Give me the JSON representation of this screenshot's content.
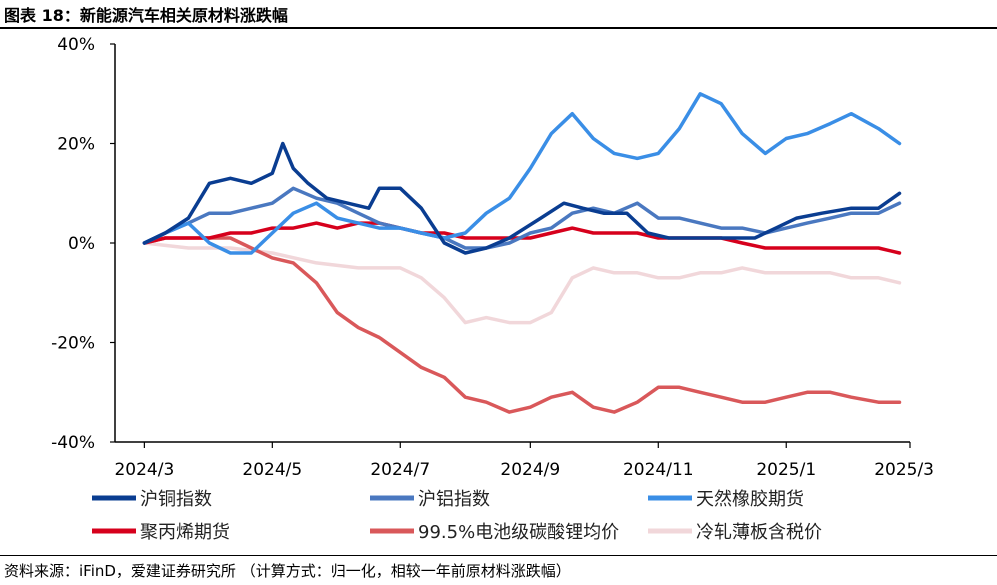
{
  "header": {
    "title": "图表 18：新能源汽车相关原材料涨跌幅"
  },
  "footer": {
    "source": "资料来源：iFinD，爱建证券研究所 （计算方式：归一化，相较一年前原材料涨跌幅）"
  },
  "chart_data": {
    "type": "line",
    "title": "图表 18：新能源汽车相关原材料涨跌幅",
    "xlabel": "",
    "ylabel": "",
    "x_tick_labels": [
      "2024/3",
      "2024/5",
      "2024/7",
      "2024/9",
      "2024/11",
      "2025/1",
      "2025/3"
    ],
    "y_tick_labels": [
      "40%",
      "20%",
      "0%",
      "-20%",
      "-40%"
    ],
    "y_ticks": [
      40,
      20,
      0,
      -20,
      -40
    ],
    "xlim": [
      "2024-03-01",
      "2025-03-15"
    ],
    "ylim": [
      -40,
      40
    ],
    "grid": false,
    "legend_placement": "bottom",
    "series": [
      {
        "name": "沪铜指数",
        "color": "#0a3d91",
        "points": [
          [
            "2024-03-15",
            0
          ],
          [
            "2024-03-25",
            2
          ],
          [
            "2024-04-05",
            5
          ],
          [
            "2024-04-15",
            12
          ],
          [
            "2024-04-25",
            13
          ],
          [
            "2024-05-05",
            12
          ],
          [
            "2024-05-15",
            14
          ],
          [
            "2024-05-20",
            20
          ],
          [
            "2024-05-25",
            15
          ],
          [
            "2024-06-01",
            12
          ],
          [
            "2024-06-10",
            9
          ],
          [
            "2024-06-20",
            8
          ],
          [
            "2024-06-30",
            7
          ],
          [
            "2024-07-05",
            11
          ],
          [
            "2024-07-15",
            11
          ],
          [
            "2024-07-25",
            7
          ],
          [
            "2024-08-05",
            0
          ],
          [
            "2024-08-15",
            -2
          ],
          [
            "2024-08-25",
            -1
          ],
          [
            "2024-09-05",
            1
          ],
          [
            "2024-09-20",
            5
          ],
          [
            "2024-10-01",
            8
          ],
          [
            "2024-10-10",
            7
          ],
          [
            "2024-10-20",
            6
          ],
          [
            "2024-10-31",
            6
          ],
          [
            "2024-11-10",
            2
          ],
          [
            "2024-11-20",
            1
          ],
          [
            "2024-12-01",
            1
          ],
          [
            "2024-12-10",
            1
          ],
          [
            "2024-12-20",
            1
          ],
          [
            "2024-12-31",
            1
          ],
          [
            "2025-01-10",
            3
          ],
          [
            "2025-01-20",
            5
          ],
          [
            "2025-02-01",
            6
          ],
          [
            "2025-02-15",
            7
          ],
          [
            "2025-02-28",
            7
          ],
          [
            "2025-03-10",
            10
          ]
        ]
      },
      {
        "name": "沪铝指数",
        "color": "#4a78c0",
        "points": [
          [
            "2024-03-15",
            0
          ],
          [
            "2024-03-25",
            2
          ],
          [
            "2024-04-05",
            4
          ],
          [
            "2024-04-15",
            6
          ],
          [
            "2024-04-25",
            6
          ],
          [
            "2024-05-05",
            7
          ],
          [
            "2024-05-15",
            8
          ],
          [
            "2024-05-25",
            11
          ],
          [
            "2024-06-05",
            9
          ],
          [
            "2024-06-15",
            8
          ],
          [
            "2024-06-25",
            6
          ],
          [
            "2024-07-05",
            4
          ],
          [
            "2024-07-15",
            3
          ],
          [
            "2024-07-25",
            2
          ],
          [
            "2024-08-05",
            1
          ],
          [
            "2024-08-15",
            -1
          ],
          [
            "2024-08-25",
            -1
          ],
          [
            "2024-09-05",
            0
          ],
          [
            "2024-09-15",
            2
          ],
          [
            "2024-09-25",
            3
          ],
          [
            "2024-10-05",
            6
          ],
          [
            "2024-10-15",
            7
          ],
          [
            "2024-10-25",
            6
          ],
          [
            "2024-11-05",
            8
          ],
          [
            "2024-11-15",
            5
          ],
          [
            "2024-11-25",
            5
          ],
          [
            "2024-12-05",
            4
          ],
          [
            "2024-12-15",
            3
          ],
          [
            "2024-12-25",
            3
          ],
          [
            "2025-01-05",
            2
          ],
          [
            "2025-01-15",
            3
          ],
          [
            "2025-01-25",
            4
          ],
          [
            "2025-02-05",
            5
          ],
          [
            "2025-02-15",
            6
          ],
          [
            "2025-02-28",
            6
          ],
          [
            "2025-03-10",
            8
          ]
        ]
      },
      {
        "name": "天然橡胶期货",
        "color": "#3a8ee6",
        "points": [
          [
            "2024-03-15",
            0
          ],
          [
            "2024-03-25",
            2
          ],
          [
            "2024-04-05",
            4
          ],
          [
            "2024-04-15",
            0
          ],
          [
            "2024-04-25",
            -2
          ],
          [
            "2024-05-05",
            -2
          ],
          [
            "2024-05-15",
            2
          ],
          [
            "2024-05-25",
            6
          ],
          [
            "2024-06-05",
            8
          ],
          [
            "2024-06-15",
            5
          ],
          [
            "2024-06-25",
            4
          ],
          [
            "2024-07-05",
            3
          ],
          [
            "2024-07-15",
            3
          ],
          [
            "2024-07-25",
            2
          ],
          [
            "2024-08-05",
            1
          ],
          [
            "2024-08-15",
            2
          ],
          [
            "2024-08-25",
            6
          ],
          [
            "2024-09-05",
            9
          ],
          [
            "2024-09-15",
            15
          ],
          [
            "2024-09-25",
            22
          ],
          [
            "2024-10-05",
            26
          ],
          [
            "2024-10-15",
            21
          ],
          [
            "2024-10-25",
            18
          ],
          [
            "2024-11-05",
            17
          ],
          [
            "2024-11-15",
            18
          ],
          [
            "2024-11-25",
            23
          ],
          [
            "2024-12-05",
            30
          ],
          [
            "2024-12-15",
            28
          ],
          [
            "2024-12-25",
            22
          ],
          [
            "2025-01-05",
            18
          ],
          [
            "2025-01-15",
            21
          ],
          [
            "2025-01-25",
            22
          ],
          [
            "2025-02-05",
            24
          ],
          [
            "2025-02-15",
            26
          ],
          [
            "2025-02-28",
            23
          ],
          [
            "2025-03-10",
            20
          ]
        ]
      },
      {
        "name": "聚丙烯期货",
        "color": "#d6001c",
        "points": [
          [
            "2024-03-15",
            0
          ],
          [
            "2024-03-25",
            1
          ],
          [
            "2024-04-05",
            1
          ],
          [
            "2024-04-15",
            1
          ],
          [
            "2024-04-25",
            2
          ],
          [
            "2024-05-05",
            2
          ],
          [
            "2024-05-15",
            3
          ],
          [
            "2024-05-25",
            3
          ],
          [
            "2024-06-05",
            4
          ],
          [
            "2024-06-15",
            3
          ],
          [
            "2024-06-25",
            4
          ],
          [
            "2024-07-05",
            4
          ],
          [
            "2024-07-15",
            3
          ],
          [
            "2024-07-25",
            2
          ],
          [
            "2024-08-05",
            2
          ],
          [
            "2024-08-15",
            1
          ],
          [
            "2024-08-25",
            1
          ],
          [
            "2024-09-05",
            1
          ],
          [
            "2024-09-15",
            1
          ],
          [
            "2024-09-25",
            2
          ],
          [
            "2024-10-05",
            3
          ],
          [
            "2024-10-15",
            2
          ],
          [
            "2024-10-25",
            2
          ],
          [
            "2024-11-05",
            2
          ],
          [
            "2024-11-15",
            1
          ],
          [
            "2024-11-25",
            1
          ],
          [
            "2024-12-05",
            1
          ],
          [
            "2024-12-15",
            1
          ],
          [
            "2024-12-25",
            0
          ],
          [
            "2025-01-05",
            -1
          ],
          [
            "2025-01-15",
            -1
          ],
          [
            "2025-01-25",
            -1
          ],
          [
            "2025-02-05",
            -1
          ],
          [
            "2025-02-15",
            -1
          ],
          [
            "2025-02-28",
            -1
          ],
          [
            "2025-03-10",
            -2
          ]
        ]
      },
      {
        "name": "99.5%电池级碳酸锂均价",
        "color": "#d9585a",
        "points": [
          [
            "2024-03-15",
            0
          ],
          [
            "2024-03-25",
            1
          ],
          [
            "2024-04-05",
            1
          ],
          [
            "2024-04-15",
            1
          ],
          [
            "2024-04-25",
            1
          ],
          [
            "2024-05-05",
            -1
          ],
          [
            "2024-05-15",
            -3
          ],
          [
            "2024-05-25",
            -4
          ],
          [
            "2024-06-05",
            -8
          ],
          [
            "2024-06-15",
            -14
          ],
          [
            "2024-06-25",
            -17
          ],
          [
            "2024-07-05",
            -19
          ],
          [
            "2024-07-15",
            -22
          ],
          [
            "2024-07-25",
            -25
          ],
          [
            "2024-08-05",
            -27
          ],
          [
            "2024-08-15",
            -31
          ],
          [
            "2024-08-25",
            -32
          ],
          [
            "2024-09-05",
            -34
          ],
          [
            "2024-09-15",
            -33
          ],
          [
            "2024-09-25",
            -31
          ],
          [
            "2024-10-05",
            -30
          ],
          [
            "2024-10-15",
            -33
          ],
          [
            "2024-10-25",
            -34
          ],
          [
            "2024-11-05",
            -32
          ],
          [
            "2024-11-15",
            -29
          ],
          [
            "2024-11-25",
            -29
          ],
          [
            "2024-12-05",
            -30
          ],
          [
            "2024-12-15",
            -31
          ],
          [
            "2024-12-25",
            -32
          ],
          [
            "2025-01-05",
            -32
          ],
          [
            "2025-01-15",
            -31
          ],
          [
            "2025-01-25",
            -30
          ],
          [
            "2025-02-05",
            -30
          ],
          [
            "2025-02-15",
            -31
          ],
          [
            "2025-02-28",
            -32
          ],
          [
            "2025-03-10",
            -32
          ]
        ]
      },
      {
        "name": "冷轧薄板含税价",
        "color": "#f1d7da",
        "points": [
          [
            "2024-03-15",
            0
          ],
          [
            "2024-04-05",
            -1
          ],
          [
            "2024-04-25",
            -1
          ],
          [
            "2024-05-15",
            -2
          ],
          [
            "2024-06-05",
            -4
          ],
          [
            "2024-06-25",
            -5
          ],
          [
            "2024-07-15",
            -5
          ],
          [
            "2024-07-25",
            -7
          ],
          [
            "2024-08-05",
            -11
          ],
          [
            "2024-08-15",
            -16
          ],
          [
            "2024-08-25",
            -15
          ],
          [
            "2024-09-05",
            -16
          ],
          [
            "2024-09-15",
            -16
          ],
          [
            "2024-09-25",
            -14
          ],
          [
            "2024-10-05",
            -7
          ],
          [
            "2024-10-15",
            -5
          ],
          [
            "2024-10-25",
            -6
          ],
          [
            "2024-11-05",
            -6
          ],
          [
            "2024-11-15",
            -7
          ],
          [
            "2024-11-25",
            -7
          ],
          [
            "2024-12-05",
            -6
          ],
          [
            "2024-12-15",
            -6
          ],
          [
            "2024-12-25",
            -5
          ],
          [
            "2025-01-05",
            -6
          ],
          [
            "2025-01-15",
            -6
          ],
          [
            "2025-01-25",
            -6
          ],
          [
            "2025-02-05",
            -6
          ],
          [
            "2025-02-15",
            -7
          ],
          [
            "2025-02-28",
            -7
          ],
          [
            "2025-03-10",
            -8
          ]
        ]
      }
    ]
  }
}
